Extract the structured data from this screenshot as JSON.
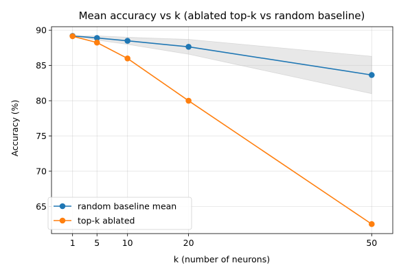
{
  "chart_data": {
    "type": "line",
    "title": "Mean accuracy vs k (ablated top-k vs random baseline)",
    "xlabel": "k (number of neurons)",
    "ylabel": "Accuracy (%)",
    "x": [
      1,
      5,
      10,
      20,
      50
    ],
    "xticks": [
      1,
      5,
      10,
      20,
      50
    ],
    "yticks": [
      65,
      70,
      75,
      80,
      85,
      90
    ],
    "xlim": [
      -2.45,
      53.45
    ],
    "ylim": [
      61.15,
      90.5
    ],
    "grid": true,
    "legend_position": "lower-left",
    "series": [
      {
        "name": "random baseline mean",
        "color": "#1f77b4",
        "values": [
          89.2,
          88.9,
          88.5,
          87.65,
          83.65
        ],
        "band_lower": [
          89.2,
          88.6,
          88.0,
          86.6,
          81.0
        ],
        "band_upper": [
          89.2,
          89.2,
          89.0,
          88.7,
          86.3
        ],
        "band_color": "#bdbdbd"
      },
      {
        "name": "top-k ablated",
        "color": "#ff7f0e",
        "values": [
          89.15,
          88.25,
          86.0,
          80.0,
          62.5
        ]
      }
    ]
  }
}
